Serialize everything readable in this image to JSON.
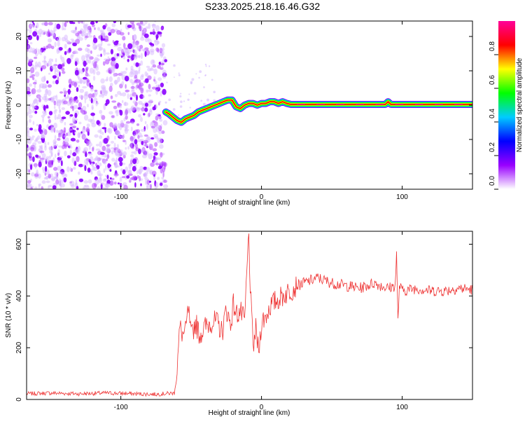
{
  "title": "S233.2025.218.16.46.G32",
  "chart_data": [
    {
      "type": "heatmap",
      "xlabel": "Height of straight line (km)",
      "ylabel": "Frequency (Hz)",
      "xlim": [
        -167,
        150
      ],
      "ylim": [
        -24.5,
        24.5
      ],
      "x_ticks": [
        -100,
        0,
        100
      ],
      "y_ticks": [
        -20,
        -10,
        0,
        10,
        20
      ],
      "grid": false,
      "noise_region_x": [
        -167,
        -68
      ],
      "ridge": {
        "x": [
          -68,
          -66,
          -63,
          -60,
          -57,
          -54,
          -51,
          -48,
          -45,
          -42,
          -39,
          -36,
          -33,
          -30,
          -27,
          -24,
          -21,
          -18,
          -15,
          -12,
          -9,
          -6,
          -3,
          0,
          3,
          6,
          9,
          12,
          15,
          18,
          21,
          30,
          60,
          88,
          90,
          92,
          100,
          150
        ],
        "y": [
          -2,
          -2.5,
          -3.5,
          -4.5,
          -5,
          -4,
          -3.5,
          -3,
          -2,
          -1.5,
          -1,
          -0.5,
          0,
          0.5,
          1,
          1.5,
          1.5,
          -0.5,
          -1,
          0,
          0.5,
          0.5,
          0,
          0.5,
          0.5,
          1,
          1,
          0.5,
          1,
          0.5,
          0.2,
          0.2,
          0.2,
          0.2,
          1,
          0.2,
          0.2,
          0.2
        ]
      },
      "colorbar": {
        "label": "Normalized spectral amplitude",
        "range": [
          0,
          1
        ],
        "ticks": [
          0.0,
          0.2,
          0.4,
          0.6,
          0.8
        ],
        "colormap": [
          "#ffffff",
          "#9900ff",
          "#0000ff",
          "#00ccff",
          "#00ff00",
          "#ffff00",
          "#ff0000",
          "#ff0099"
        ]
      }
    },
    {
      "type": "line",
      "xlabel": "Height of straight line (km)",
      "ylabel": "SNR (10 * v/v)",
      "xlim": [
        -167,
        150
      ],
      "ylim": [
        0,
        650
      ],
      "x_ticks": [
        -100,
        0,
        100
      ],
      "y_ticks": [
        0,
        200,
        400,
        600
      ],
      "grid": false,
      "color": "#ee3333",
      "series": [
        {
          "x": [
            -167,
            -150,
            -130,
            -110,
            -90,
            -75,
            -62,
            -60,
            -58,
            -56,
            -54,
            -52,
            -50,
            -47,
            -44,
            -40,
            -36,
            -32,
            -28,
            -25,
            -22,
            -20,
            -18,
            -15,
            -12,
            -10,
            -9,
            -8,
            -6,
            -4,
            -2,
            0,
            3,
            6,
            10,
            15,
            20,
            25,
            30,
            40,
            50,
            60,
            70,
            80,
            90,
            95,
            96,
            97,
            98,
            100,
            110,
            120,
            130,
            140,
            150
          ],
          "y": [
            22,
            25,
            22,
            25,
            22,
            20,
            25,
            120,
            280,
            250,
            260,
            350,
            240,
            300,
            250,
            280,
            300,
            300,
            260,
            350,
            290,
            370,
            330,
            340,
            300,
            540,
            640,
            430,
            200,
            270,
            180,
            300,
            320,
            360,
            380,
            400,
            420,
            440,
            450,
            470,
            450,
            440,
            430,
            450,
            430,
            440,
            560,
            300,
            440,
            420,
            430,
            420,
            420,
            430,
            425
          ]
        }
      ]
    }
  ]
}
